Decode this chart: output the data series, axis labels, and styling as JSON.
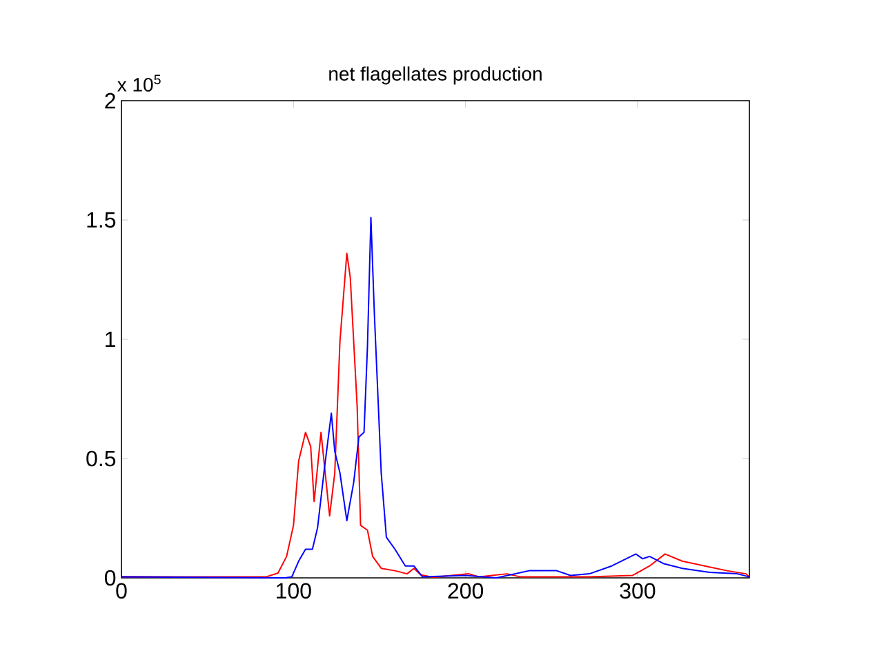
{
  "chart_data": {
    "type": "line",
    "title": "net flagellates production",
    "annotations": [
      "x 10$^{5}$"
    ],
    "xlim": [
      0,
      365
    ],
    "xticks": [
      0,
      100,
      200,
      300
    ],
    "ylim": [
      0,
      2
    ],
    "yticks": [
      0,
      0.5,
      1,
      1.5,
      2
    ],
    "series": [
      {
        "color": "#ff0000",
        "x": [
          0,
          84,
          91,
          96,
          100,
          103,
          107,
          110,
          112,
          116,
          119,
          121,
          124,
          127,
          131,
          133,
          137,
          139,
          143,
          146,
          151,
          159,
          166,
          170,
          174,
          181,
          202,
          208,
          224,
          232,
          272,
          297,
          307,
          316,
          326,
          339,
          352,
          363,
          365
        ],
        "values": [
          0.005,
          0.004,
          0.02,
          0.09,
          0.22,
          0.49,
          0.61,
          0.55,
          0.32,
          0.61,
          0.4,
          0.26,
          0.44,
          0.99,
          1.36,
          1.26,
          0.72,
          0.22,
          0.2,
          0.09,
          0.04,
          0.03,
          0.017,
          0.04,
          0.013,
          0.002,
          0.017,
          0.004,
          0.017,
          0.004,
          0.004,
          0.01,
          0.05,
          0.1,
          0.07,
          0.05,
          0.03,
          0.017,
          0.004
        ]
      },
      {
        "color": "#0000ff",
        "x": [
          0,
          95,
          99,
          103,
          107,
          111,
          114,
          118,
          122,
          124,
          127,
          131,
          135,
          138,
          141,
          143,
          145,
          147,
          151,
          154,
          159,
          165,
          170,
          175,
          200,
          218,
          237,
          253,
          261,
          272,
          285,
          299,
          303,
          307,
          315,
          326,
          342,
          358,
          365
        ],
        "values": [
          0.004,
          0,
          0.004,
          0.07,
          0.12,
          0.12,
          0.21,
          0.46,
          0.69,
          0.53,
          0.44,
          0.24,
          0.4,
          0.59,
          0.61,
          0.97,
          1.51,
          1.11,
          0.44,
          0.17,
          0.12,
          0.05,
          0.05,
          0.004,
          0.01,
          0,
          0.03,
          0.03,
          0.01,
          0.017,
          0.05,
          0.1,
          0.08,
          0.09,
          0.06,
          0.04,
          0.023,
          0.017,
          0.004
        ]
      }
    ]
  }
}
